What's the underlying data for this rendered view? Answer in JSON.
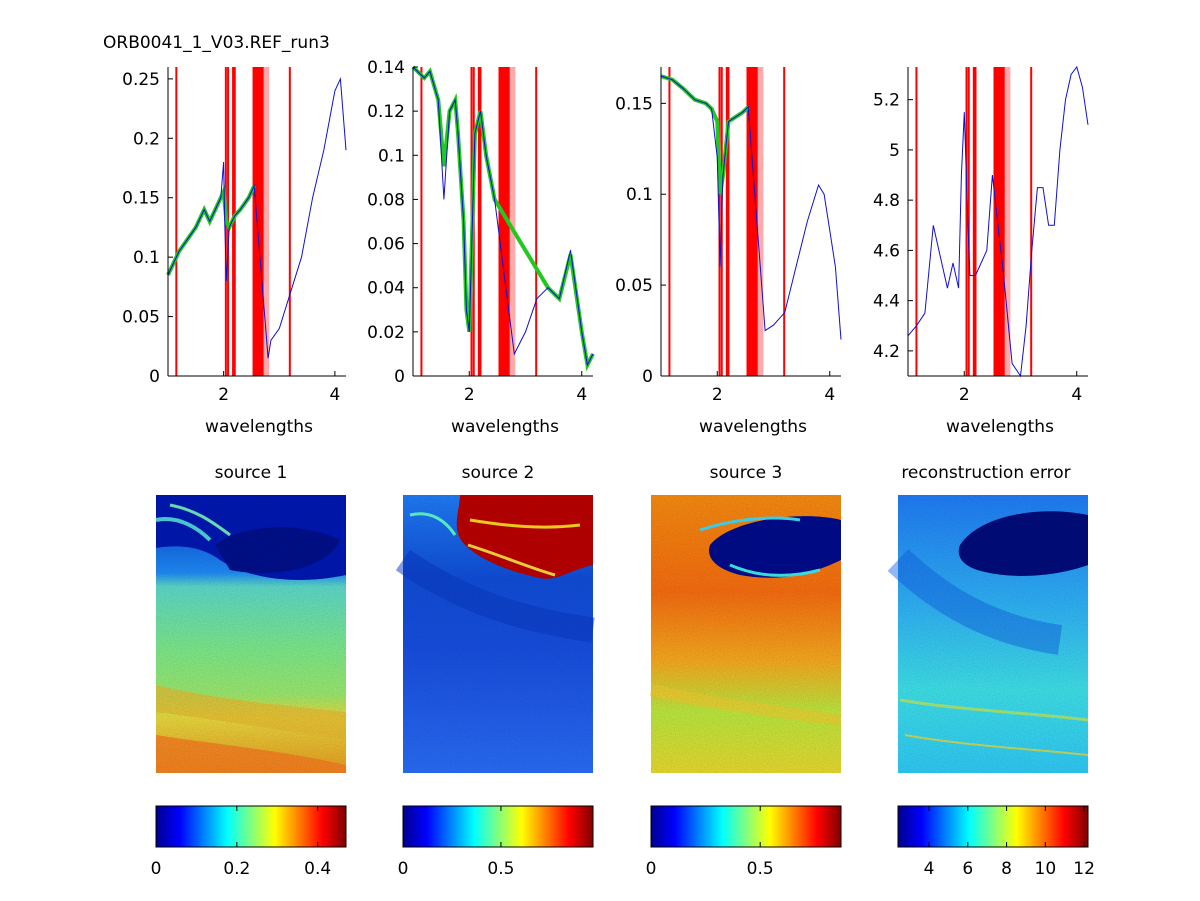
{
  "figure": {
    "title": "ORB0041_1_V03.REF_run3"
  },
  "colors": {
    "blue_line": "#1010d0",
    "green_band": "#22c822",
    "band_dark": "#ff0000",
    "band_light": "#ffaaaa"
  },
  "bands": {
    "narrow": [
      1.15,
      2.04,
      2.08,
      2.17,
      2.18,
      2.2,
      3.19
    ],
    "wide": [
      [
        2.52,
        2.72
      ]
    ],
    "light": [
      [
        2.72,
        2.82
      ]
    ]
  },
  "chart_data": [
    {
      "type": "line",
      "xlabel": "wavelengths",
      "xlim": [
        1.0,
        4.2
      ],
      "ylim": [
        0,
        0.26
      ],
      "xticks": [
        {
          "v": 2,
          "label": "2"
        },
        {
          "v": 4,
          "label": "4"
        }
      ],
      "yticks": [
        {
          "v": 0,
          "label": "0"
        },
        {
          "v": 0.05,
          "label": "0.05"
        },
        {
          "v": 0.1,
          "label": "0.1"
        },
        {
          "v": 0.15,
          "label": "0.15"
        },
        {
          "v": 0.2,
          "label": "0.2"
        },
        {
          "v": 0.25,
          "label": "0.25"
        }
      ],
      "series": [
        {
          "name": "green",
          "x": [
            1.0,
            1.2,
            1.35,
            1.5,
            1.65,
            1.75,
            1.85,
            1.95,
            2.0,
            2.05,
            2.1,
            2.2,
            2.3,
            2.45,
            2.55
          ],
          "y": [
            0.085,
            0.105,
            0.115,
            0.125,
            0.14,
            0.13,
            0.14,
            0.15,
            0.155,
            0.13,
            0.125,
            0.135,
            0.14,
            0.15,
            0.16
          ]
        },
        {
          "name": "blue",
          "x": [
            1.0,
            1.2,
            1.35,
            1.5,
            1.65,
            1.75,
            1.85,
            1.95,
            2.0,
            2.02,
            2.05,
            2.1,
            2.2,
            2.3,
            2.45,
            2.55,
            2.8,
            2.85,
            3.0,
            3.2,
            3.4,
            3.6,
            3.8,
            4.0,
            4.1,
            4.2
          ],
          "y": [
            0.085,
            0.105,
            0.115,
            0.125,
            0.14,
            0.13,
            0.14,
            0.15,
            0.18,
            0.13,
            0.08,
            0.125,
            0.135,
            0.14,
            0.15,
            0.16,
            0.015,
            0.03,
            0.04,
            0.07,
            0.1,
            0.15,
            0.19,
            0.24,
            0.25,
            0.19
          ]
        }
      ]
    },
    {
      "type": "line",
      "xlabel": "wavelengths",
      "xlim": [
        1.0,
        4.2
      ],
      "ylim": [
        0,
        0.14
      ],
      "xticks": [
        {
          "v": 2,
          "label": "2"
        },
        {
          "v": 4,
          "label": "4"
        }
      ],
      "yticks": [
        {
          "v": 0,
          "label": "0"
        },
        {
          "v": 0.02,
          "label": "0.02"
        },
        {
          "v": 0.04,
          "label": "0.04"
        },
        {
          "v": 0.06,
          "label": "0.06"
        },
        {
          "v": 0.08,
          "label": "0.08"
        },
        {
          "v": 0.1,
          "label": "0.1"
        },
        {
          "v": 0.12,
          "label": "0.12"
        },
        {
          "v": 0.14,
          "label": "0.14"
        }
      ],
      "series": [
        {
          "name": "green",
          "x": [
            1.0,
            1.2,
            1.3,
            1.45,
            1.55,
            1.65,
            1.75,
            1.8,
            1.9,
            1.95,
            2.0,
            2.1,
            2.2,
            2.3,
            2.45,
            3.4,
            3.6,
            3.8,
            4.0,
            4.1,
            4.2
          ],
          "y": [
            0.14,
            0.135,
            0.138,
            0.125,
            0.095,
            0.12,
            0.125,
            0.11,
            0.07,
            0.03,
            0.02,
            0.11,
            0.12,
            0.1,
            0.08,
            0.04,
            0.035,
            0.055,
            0.02,
            0.005,
            0.01
          ]
        },
        {
          "name": "blue",
          "x": [
            1.0,
            1.2,
            1.3,
            1.45,
            1.55,
            1.65,
            1.75,
            1.8,
            1.9,
            1.95,
            2.0,
            2.1,
            2.2,
            2.3,
            2.45,
            2.8,
            3.0,
            3.2,
            3.4,
            3.6,
            3.8,
            4.0,
            4.1,
            4.2
          ],
          "y": [
            0.14,
            0.135,
            0.138,
            0.125,
            0.08,
            0.12,
            0.125,
            0.11,
            0.07,
            0.03,
            0.02,
            0.11,
            0.12,
            0.1,
            0.08,
            0.01,
            0.02,
            0.035,
            0.04,
            0.035,
            0.057,
            0.02,
            0.005,
            0.01
          ]
        }
      ]
    },
    {
      "type": "line",
      "xlabel": "wavelengths",
      "xlim": [
        1.0,
        4.2
      ],
      "ylim": [
        0,
        0.17
      ],
      "xticks": [
        {
          "v": 2,
          "label": "2"
        },
        {
          "v": 4,
          "label": "4"
        }
      ],
      "yticks": [
        {
          "v": 0,
          "label": "0"
        },
        {
          "v": 0.05,
          "label": "0.05"
        },
        {
          "v": 0.1,
          "label": "0.1"
        },
        {
          "v": 0.15,
          "label": "0.15"
        }
      ],
      "series": [
        {
          "name": "green",
          "x": [
            1.0,
            1.2,
            1.4,
            1.6,
            1.8,
            1.9,
            2.0,
            2.05,
            2.1,
            2.2,
            2.3,
            2.45,
            2.55
          ],
          "y": [
            0.165,
            0.163,
            0.158,
            0.152,
            0.15,
            0.147,
            0.14,
            0.1,
            0.11,
            0.14,
            0.142,
            0.145,
            0.148
          ]
        },
        {
          "name": "blue",
          "x": [
            1.0,
            1.2,
            1.4,
            1.6,
            1.8,
            1.9,
            2.0,
            2.05,
            2.1,
            2.2,
            2.3,
            2.45,
            2.55,
            2.85,
            3.0,
            3.2,
            3.4,
            3.6,
            3.8,
            3.9,
            4.0,
            4.1,
            4.2
          ],
          "y": [
            0.165,
            0.163,
            0.158,
            0.152,
            0.15,
            0.147,
            0.12,
            0.06,
            0.11,
            0.14,
            0.142,
            0.145,
            0.148,
            0.025,
            0.028,
            0.035,
            0.06,
            0.085,
            0.105,
            0.1,
            0.08,
            0.06,
            0.02
          ]
        }
      ]
    },
    {
      "type": "line",
      "xlabel": "wavelengths",
      "xlim": [
        1.0,
        4.2
      ],
      "ylim": [
        4.1,
        5.33
      ],
      "xticks": [
        {
          "v": 2,
          "label": "2"
        },
        {
          "v": 4,
          "label": "4"
        }
      ],
      "yticks": [
        {
          "v": 4.2,
          "label": "4.2"
        },
        {
          "v": 4.4,
          "label": "4.4"
        },
        {
          "v": 4.6,
          "label": "4.6"
        },
        {
          "v": 4.8,
          "label": "4.8"
        },
        {
          "v": 5.0,
          "label": "5"
        },
        {
          "v": 5.2,
          "label": "5.2"
        }
      ],
      "series": [
        {
          "name": "blue",
          "x": [
            1.0,
            1.15,
            1.3,
            1.45,
            1.55,
            1.7,
            1.8,
            1.9,
            1.95,
            2.0,
            2.05,
            2.1,
            2.2,
            2.3,
            2.4,
            2.5,
            2.6,
            2.7,
            2.85,
            3.0,
            3.1,
            3.2,
            3.3,
            3.4,
            3.5,
            3.6,
            3.7,
            3.8,
            3.9,
            4.0,
            4.1,
            4.2
          ],
          "y": [
            4.26,
            4.3,
            4.35,
            4.7,
            4.6,
            4.45,
            4.55,
            4.45,
            4.9,
            5.15,
            4.8,
            4.5,
            4.5,
            4.55,
            4.6,
            4.9,
            4.7,
            4.5,
            4.15,
            4.1,
            4.3,
            4.6,
            4.85,
            4.85,
            4.7,
            4.7,
            5.0,
            5.2,
            5.3,
            5.33,
            5.25,
            5.1
          ]
        }
      ]
    }
  ],
  "maps": [
    {
      "title": "source 1",
      "colorbar": {
        "ticks": [
          {
            "v": 0,
            "label": "0"
          },
          {
            "v": 0.2,
            "label": "0.2"
          },
          {
            "v": 0.4,
            "label": "0.4"
          }
        ],
        "min": 0,
        "max": 0.47
      }
    },
    {
      "title": "source 2",
      "colorbar": {
        "ticks": [
          {
            "v": 0,
            "label": "0"
          },
          {
            "v": 0.5,
            "label": "0.5"
          }
        ],
        "min": 0,
        "max": 0.97
      }
    },
    {
      "title": "source 3",
      "colorbar": {
        "ticks": [
          {
            "v": 0,
            "label": "0"
          },
          {
            "v": 0.5,
            "label": "0.5"
          }
        ],
        "min": 0,
        "max": 0.87
      }
    },
    {
      "title": "reconstruction error",
      "colorbar": {
        "ticks": [
          {
            "v": 4,
            "label": "4"
          },
          {
            "v": 6,
            "label": "6"
          },
          {
            "v": 8,
            "label": "8"
          },
          {
            "v": 10,
            "label": "10"
          },
          {
            "v": 12,
            "label": "12"
          }
        ],
        "min": 2.4,
        "max": 12.2
      }
    }
  ]
}
